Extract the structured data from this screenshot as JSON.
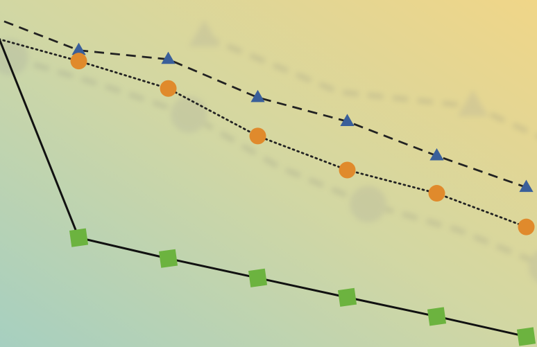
{
  "chart_data": {
    "type": "line",
    "title": "",
    "xlabel": "",
    "ylabel": "",
    "grid": false,
    "legend": "none",
    "x": [
      0,
      1,
      2,
      3,
      4,
      5,
      6
    ],
    "xlim": [
      0.12,
      6.12
    ],
    "ylim": [
      0,
      1
    ],
    "series": [
      {
        "id": "dashed-triangles",
        "values": [
          0.955,
          0.855,
          0.829,
          0.719,
          0.65,
          0.551,
          0.46
        ],
        "line_style": "dashed",
        "marker": "triangle",
        "marker_color": "#3a5f9a",
        "line_color": "#222222"
      },
      {
        "id": "dotted-circles",
        "values": [
          0.895,
          0.824,
          0.745,
          0.608,
          0.51,
          0.443,
          0.346
        ],
        "line_style": "dotted",
        "marker": "circle",
        "marker_color": "#e08a2c",
        "line_color": "#222222"
      },
      {
        "id": "solid-squares",
        "values": [
          0.96,
          0.315,
          0.255,
          0.199,
          0.143,
          0.088,
          0.03
        ],
        "line_style": "solid",
        "marker": "square",
        "marker_color": "#6cb33f",
        "line_color": "#111111"
      }
    ],
    "background_gradient": [
      "#a6cfc0",
      "#d2d7a3",
      "#f0d688"
    ]
  }
}
